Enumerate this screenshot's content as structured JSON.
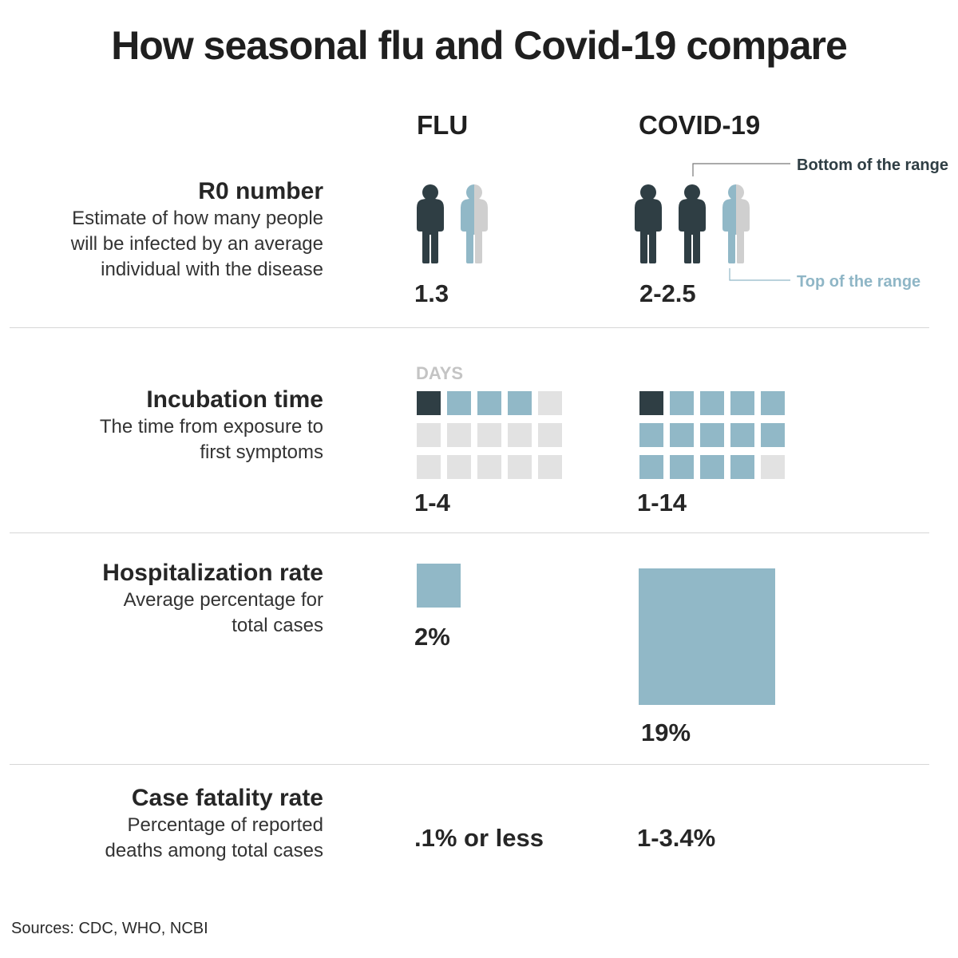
{
  "title": "How seasonal flu and Covid-19 compare",
  "columns": {
    "flu": "FLU",
    "covid": "COVID-19"
  },
  "colors": {
    "dark": "#2f3e44",
    "blue": "#91b8c7",
    "gray": "#cfcfcf",
    "lightgray": "#e2e2e2"
  },
  "rows": {
    "r0": {
      "title": "R0 number",
      "description": [
        "Estimate of how many people",
        "will be infected by an average",
        "individual with the disease"
      ],
      "flu_value": "1.3",
      "covid_value": "2-2.5",
      "annotation_bottom": "Bottom of the range",
      "annotation_top": "Top of the range"
    },
    "incubation": {
      "title": "Incubation time",
      "description": [
        "The time from exposure to",
        "first symptoms"
      ],
      "unit_label": "DAYS",
      "flu_value": "1-4",
      "covid_value": "1-14"
    },
    "hospitalization": {
      "title": "Hospitalization rate",
      "description": [
        "Average percentage for",
        "total cases"
      ],
      "flu_value": "2%",
      "covid_value": "19%"
    },
    "fatality": {
      "title": "Case fatality rate",
      "description": [
        "Percentage of reported",
        "deaths among total cases"
      ],
      "flu_value": ".1% or less",
      "covid_value": "1-3.4%"
    }
  },
  "source": "Sources: CDC, WHO,  NCBI",
  "chart_data": {
    "type": "table",
    "title": "How seasonal flu and Covid-19 compare",
    "columns": [
      "FLU",
      "COVID-19"
    ],
    "r0": {
      "flu": 1.3,
      "covid_low": 2,
      "covid_high": 2.5
    },
    "incubation_days": {
      "flu": [
        1,
        4
      ],
      "covid": [
        1,
        14
      ],
      "grid_cells": 15
    },
    "hospitalization_rate_pct": {
      "flu": 2,
      "covid": 19
    },
    "case_fatality_rate": {
      "flu": ".1% or less",
      "covid": "1-3.4%"
    }
  }
}
